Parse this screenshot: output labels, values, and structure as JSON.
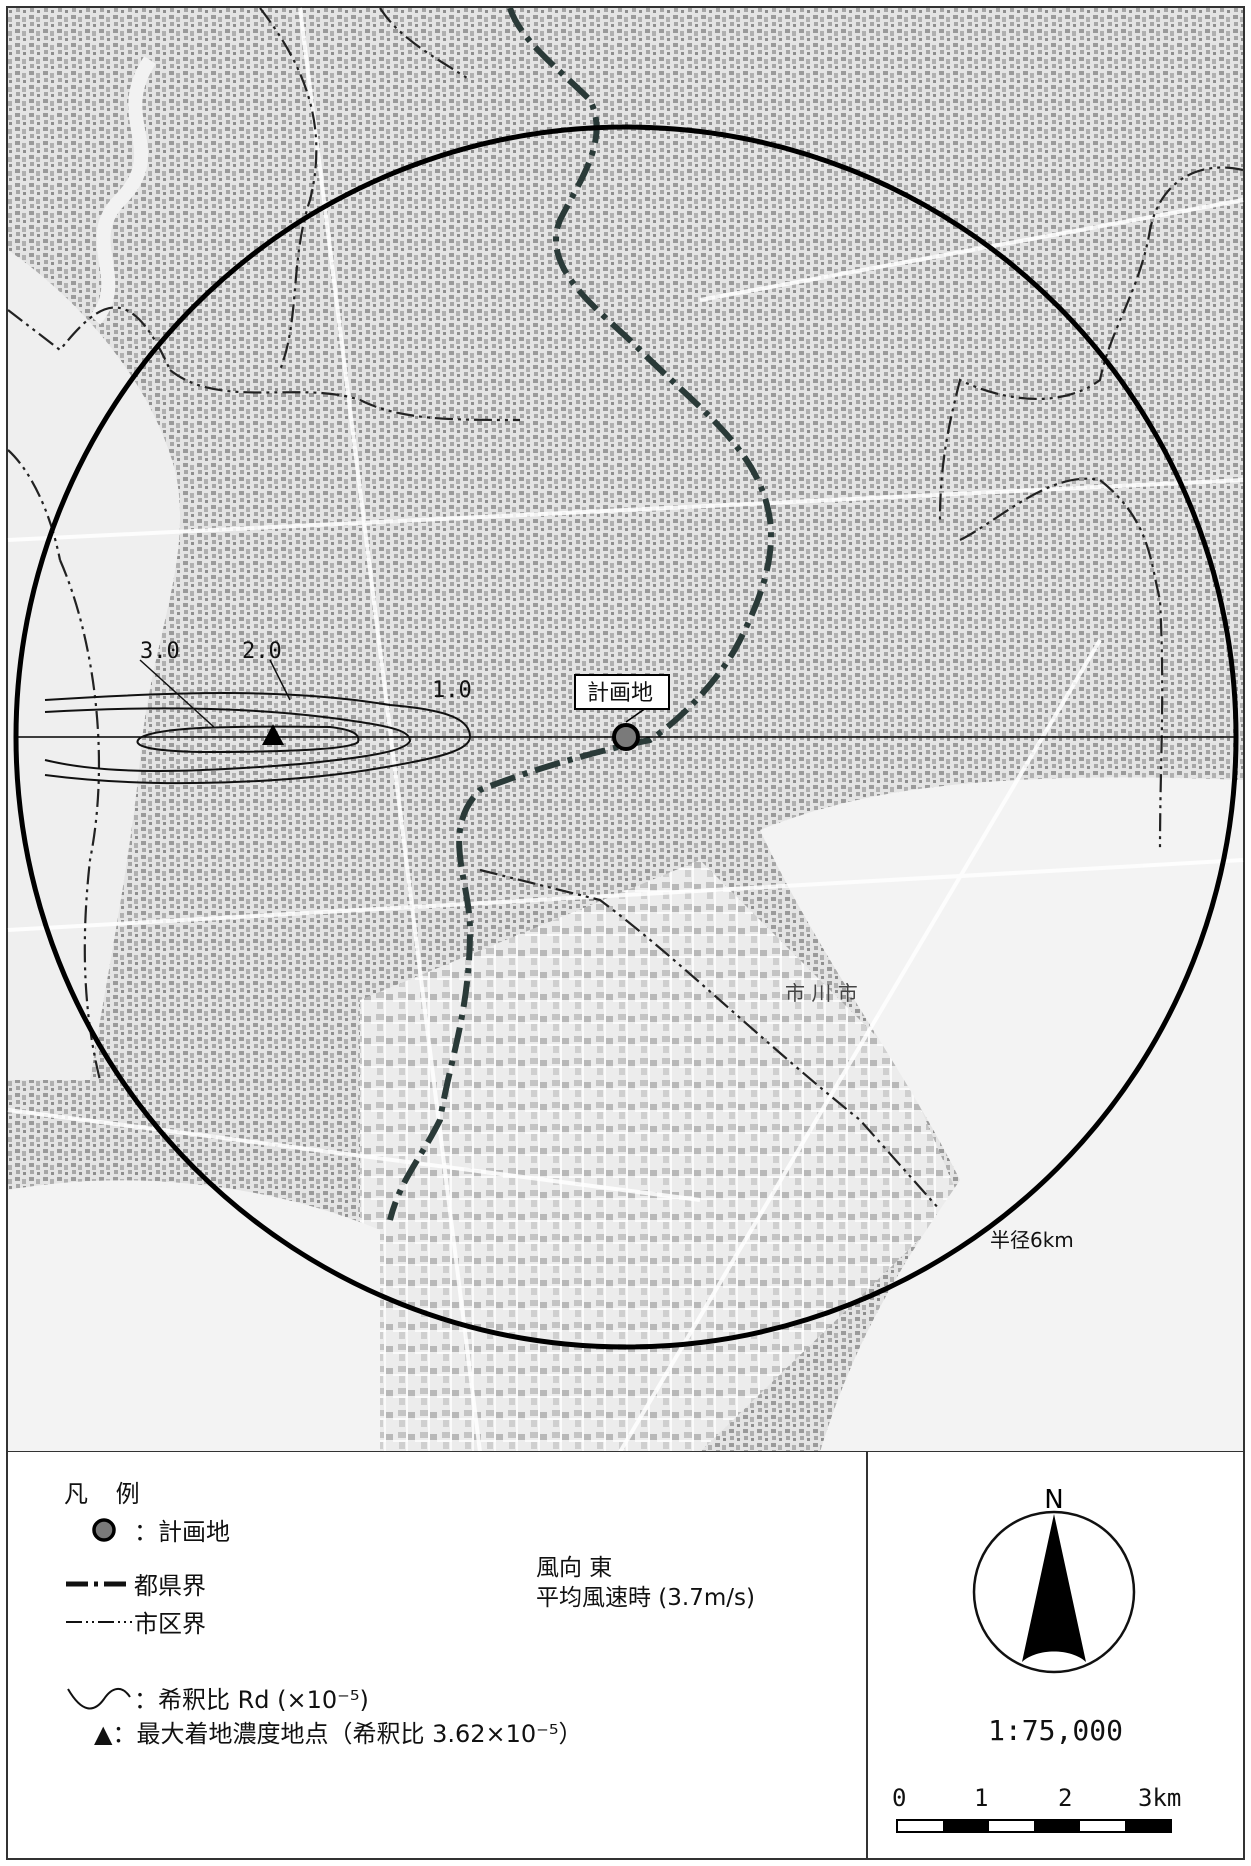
{
  "map": {
    "plan_site_label": "計画地",
    "radius_label": "半径6km",
    "contours": [
      {
        "label": "3.0"
      },
      {
        "label": "2.0"
      },
      {
        "label": "1.0"
      }
    ],
    "place_label": "市 川 市",
    "colors": {
      "site_marker": "#7a7a7a",
      "map_bg": "#e6e6e6",
      "sea": "#f1f1f1",
      "boundary": "#2a3a38"
    }
  },
  "legend": {
    "title": "凡 例",
    "items": [
      {
        "symbol": "circle-marker-icon",
        "label": "：計画地"
      },
      {
        "symbol": "prefecture-boundary-line-icon",
        "label": "都県界"
      },
      {
        "symbol": "city-boundary-line-icon",
        "label": "市区界"
      },
      {
        "symbol": "contour-line-icon",
        "label": "：希釈比 Rd (×10⁻⁵)"
      },
      {
        "symbol": "triangle-marker-icon",
        "label": "▲：最大着地濃度地点（希釈比 3.62×10⁻⁵）"
      }
    ],
    "wind_direction": "風向 東",
    "wind_speed": "平均風速時 (3.7m/s)"
  },
  "compass": {
    "north_label": "N",
    "scale_ratio": "1:75,000",
    "scale_ticks": [
      "0",
      "1",
      "2",
      "3km"
    ]
  }
}
